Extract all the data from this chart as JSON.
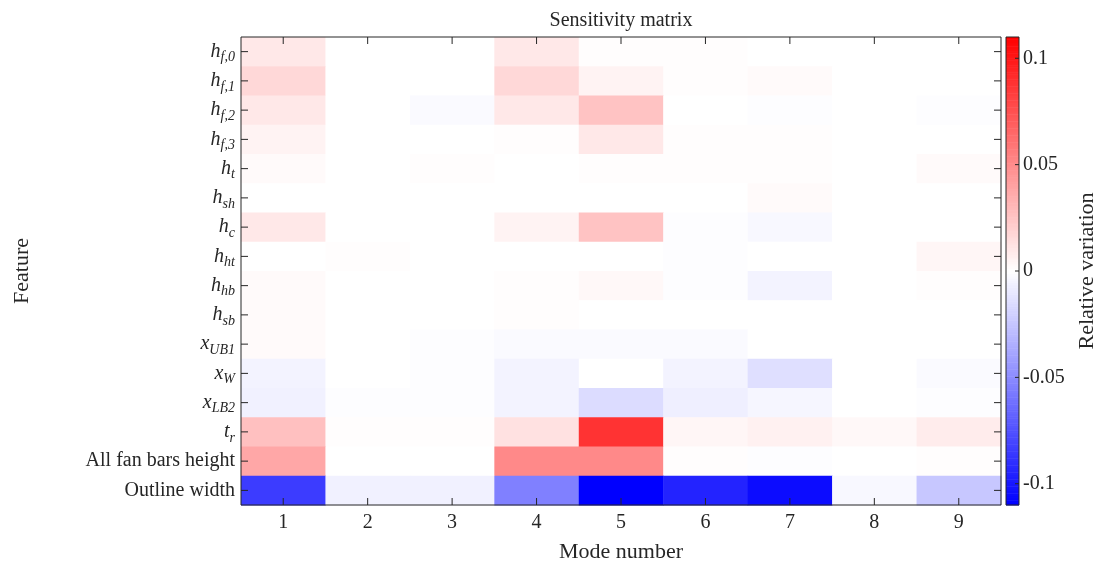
{
  "chart_data": {
    "type": "heatmap",
    "title": "Sensitivity matrix",
    "xlabel": "Mode number",
    "ylabel": "Feature",
    "clabel": "Relative variation",
    "categories": [
      "1",
      "2",
      "3",
      "4",
      "5",
      "6",
      "7",
      "8",
      "9"
    ],
    "y_categories": [
      "h$_{f,0}$",
      "h$_{f,1}$",
      "h$_{f,2}$",
      "h$_{f,3}$",
      "h$_{t}$",
      "h$_{sh}$",
      "h$_{c}$",
      "h$_{ht}$",
      "h$_{hb}$",
      "h$_{sb}$",
      "x$_{UB1}$",
      "x$_{W}$",
      "x$_{LB2}$",
      "t$_{r}$",
      "All fan bars height",
      "Outline width"
    ],
    "cells": [
      [
        0.01,
        0,
        0,
        0.01,
        0.001,
        0.001,
        0,
        0,
        0
      ],
      [
        0.017,
        0,
        0,
        0.017,
        0.005,
        0.001,
        0.002,
        0,
        0
      ],
      [
        0.01,
        0,
        -0.002,
        0.01,
        0.026,
        0,
        -0.001,
        0,
        -0.001
      ],
      [
        0.005,
        0,
        0,
        0.001,
        0.01,
        0.001,
        0.001,
        0,
        0
      ],
      [
        0.002,
        0,
        0.001,
        0,
        0.001,
        0.001,
        0.001,
        0,
        0.002
      ],
      [
        0,
        0,
        0,
        0,
        0,
        0,
        0.002,
        0,
        0
      ],
      [
        0.01,
        0,
        0,
        0.005,
        0.026,
        -0.001,
        -0.003,
        0,
        0
      ],
      [
        0,
        0.001,
        0,
        0,
        0,
        -0.001,
        0,
        0,
        0.004
      ],
      [
        0.002,
        0,
        0,
        0.001,
        0.003,
        -0.001,
        -0.005,
        0,
        0.001
      ],
      [
        0.002,
        0,
        0,
        0.001,
        0,
        0,
        0,
        0,
        0
      ],
      [
        0.002,
        0,
        -0.001,
        -0.002,
        -0.002,
        -0.002,
        0,
        0,
        0
      ],
      [
        -0.005,
        0,
        -0.001,
        -0.005,
        0,
        -0.005,
        -0.014,
        0,
        -0.002
      ],
      [
        -0.006,
        -0.001,
        -0.001,
        -0.005,
        -0.015,
        -0.007,
        -0.004,
        0,
        -0.001
      ],
      [
        0.027,
        0.001,
        0.001,
        0.013,
        0.088,
        0.004,
        0.006,
        0.003,
        0.008
      ],
      [
        0.038,
        0,
        0,
        0.051,
        0.051,
        0.001,
        -0.001,
        0,
        0.001
      ],
      [
        -0.084,
        -0.006,
        -0.006,
        -0.055,
        -0.11,
        -0.095,
        -0.105,
        -0.003,
        -0.024
      ]
    ],
    "clim": [
      -0.11,
      0.11
    ],
    "cticks": [
      {
        "value": -0.1,
        "label": "-0.1"
      },
      {
        "value": -0.05,
        "label": "-0.05"
      },
      0,
      0.05,
      0.1
    ]
  }
}
